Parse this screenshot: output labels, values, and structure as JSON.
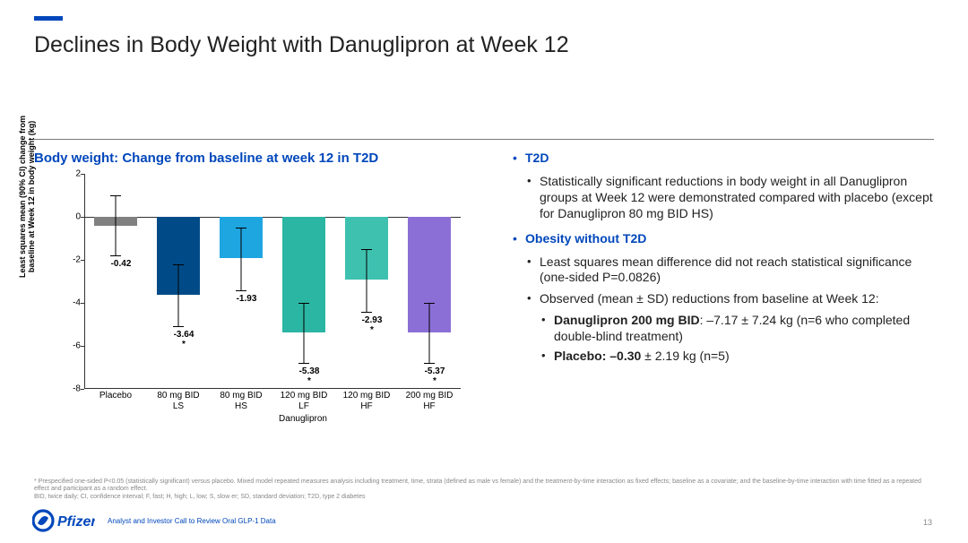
{
  "title": "Declines in Body Weight with Danuglipron at Week 12",
  "chart": {
    "title": "Body weight: Change from baseline at week 12 in T2D",
    "ylabel": "Least squares mean (90% CI) change from\nbaseline at Week 12 in body weight (kg)",
    "ylim": [
      -8,
      2
    ],
    "ytick_step": 2,
    "yticks": [
      2,
      0,
      -2,
      -4,
      -6,
      -8
    ],
    "xgroup": "Danuglipron",
    "bars": [
      {
        "label": "Placebo",
        "value": -0.42,
        "value_label": "-0.42",
        "star": false,
        "color": "#808080",
        "err_lo": -1.8,
        "err_hi": 1.0
      },
      {
        "label": "80 mg BID\nLS",
        "value": -3.64,
        "value_label": "-3.64",
        "star": true,
        "color": "#004b87",
        "err_lo": -5.1,
        "err_hi": -2.2
      },
      {
        "label": "80 mg BID\nHS",
        "value": -1.93,
        "value_label": "-1.93",
        "star": false,
        "color": "#1ea6e0",
        "err_lo": -3.4,
        "err_hi": -0.5
      },
      {
        "label": "120 mg BID\nLF",
        "value": -5.38,
        "value_label": "-5.38",
        "star": true,
        "color": "#2bb6a3",
        "err_lo": -6.8,
        "err_hi": -4.0
      },
      {
        "label": "120 mg BID\nHF",
        "value": -2.93,
        "value_label": "-2.93",
        "star": true,
        "color": "#3fc1b0",
        "err_lo": -4.4,
        "err_hi": -1.5
      },
      {
        "label": "200 mg BID\nHF",
        "value": -5.37,
        "value_label": "-5.37",
        "star": true,
        "color": "#8b6fd6",
        "err_lo": -6.8,
        "err_hi": -4.0
      }
    ]
  },
  "right": {
    "heading1": "T2D",
    "p1": "Statistically significant reductions in body weight in all Danuglipron groups at Week 12 were demonstrated compared with placebo (except for Danuglipron 80 mg BID HS)",
    "heading2": "Obesity without T2D",
    "p2a": "Least squares mean difference did not reach statistical significance (one-sided P=0.0826)",
    "p2b": "Observed (mean ± SD) reductions from baseline at Week 12:",
    "p2c_bold": "Danuglipron 200 mg BID",
    "p2c_rest": ": –7.17 ± 7.24 kg (n=6 who completed double-blind treatment)",
    "p2d_bold": "Placebo: –0.30",
    "p2d_rest": " ± 2.19 kg (n=5)"
  },
  "footnote": "* Prespecified one-sided P<0.05 (statistically significant) versus placebo. Mixed model repeated measures analysis including treatment, time, strata (defined as male vs female) and the treatment-by-time interaction as fixed effects; baseline as a covariate; and the baseline-by-time interaction with time fitted as a repeated effect and participant as a random effect.\nBID, twice daily; CI, confidence interval; F, fast; H, high; L, low; S, slow er; SD, standard deviation; T2D, type 2 diabetes",
  "footer": {
    "brand": "Pfizer",
    "caption": "Analyst and Investor Call to Review Oral GLP-1 Data",
    "page": "13"
  }
}
